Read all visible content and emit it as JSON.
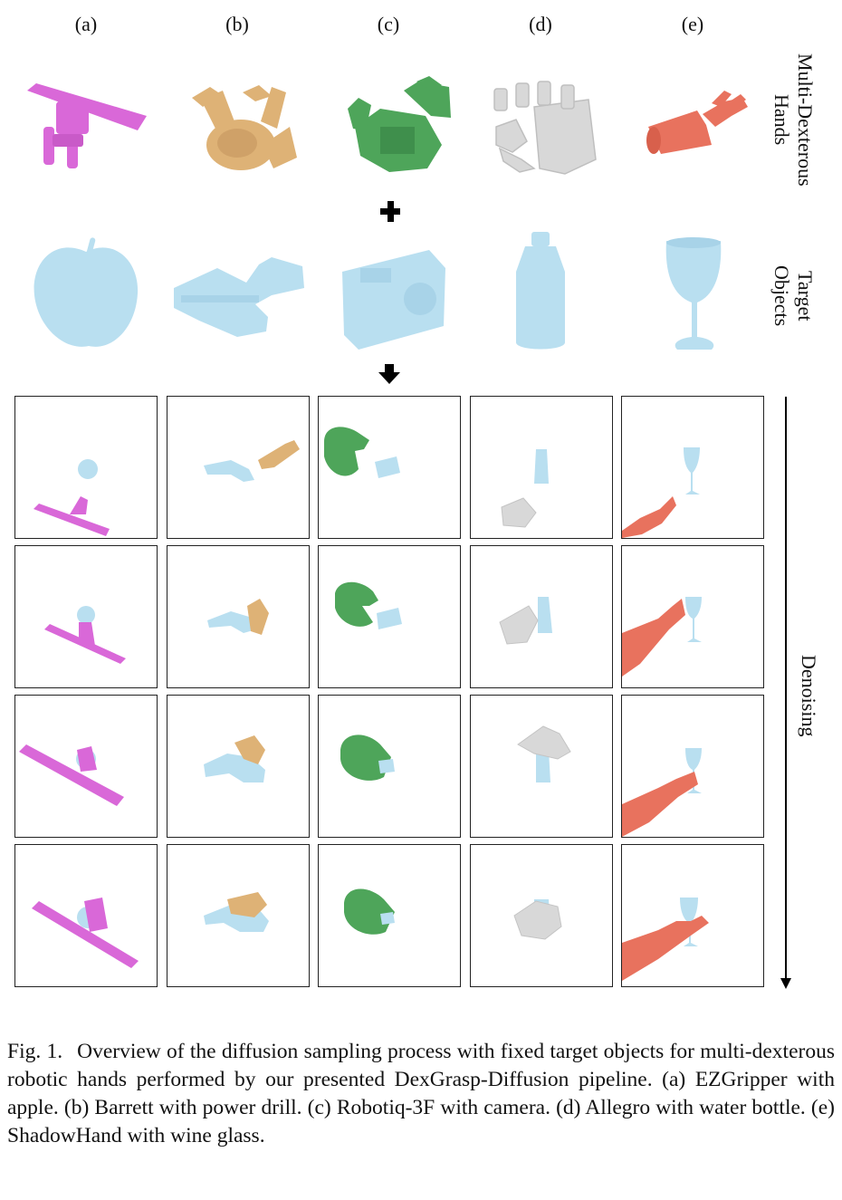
{
  "columns": [
    {
      "label": "(a)",
      "hand": "EZGripper",
      "object": "apple",
      "hand_color": "#d968d8"
    },
    {
      "label": "(b)",
      "hand": "Barrett",
      "object": "power drill",
      "hand_color": "#deb276"
    },
    {
      "label": "(c)",
      "hand": "Robotiq-3F",
      "object": "camera",
      "hand_color": "#4ea55a"
    },
    {
      "label": "(d)",
      "hand": "Allegro",
      "object": "water bottle",
      "hand_color": "#d8d8d8"
    },
    {
      "label": "(e)",
      "hand": "ShadowHand",
      "object": "wine glass",
      "hand_color": "#e8725e"
    }
  ],
  "row_labels": {
    "hands_line1": "Multi-Dexterous",
    "hands_line2": "Hands",
    "objects_line1": "Target",
    "objects_line2": "Objects",
    "denoising": "Denoising"
  },
  "object_color": "#b9dff0",
  "caption": {
    "number": "Fig. 1.",
    "text": "Overview of the diffusion sampling process with fixed target objects for multi-dexterous robotic hands performed by our presented DexGrasp-Diffusion pipeline. (a) EZGripper with apple. (b) Barrett with power drill. (c) Robotiq-3F with camera. (d) Allegro with water bottle. (e) ShadowHand with wine glass."
  }
}
